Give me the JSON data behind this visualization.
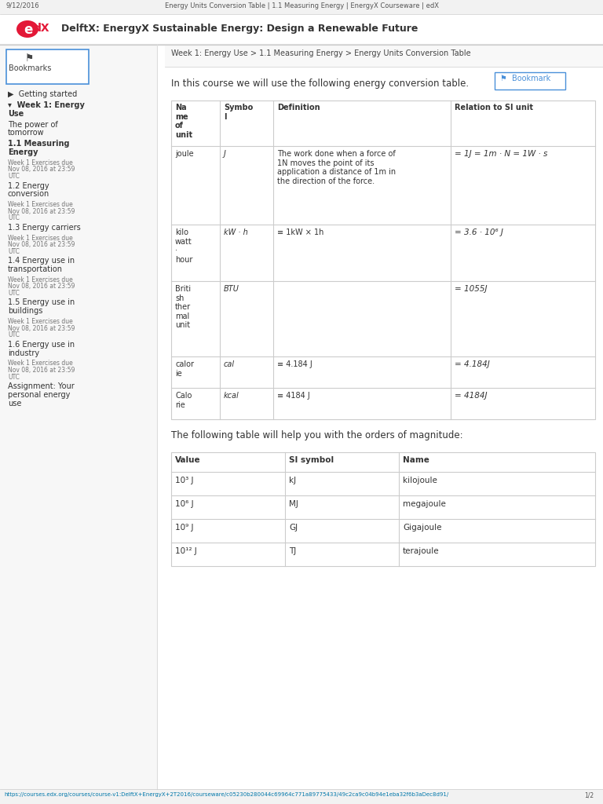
{
  "bg_color": "#ffffff",
  "header_text": "9/12/2016",
  "header_center": "Energy Units Conversion Table | 1.1 Measuring Energy | EnergyX Courseware | edX",
  "brand_title": "DelftX: EnergyX Sustainable Energy: Design a Renewable Future",
  "breadcrumb": "Week 1: Energy Use > 1.1 Measuring Energy > Energy Units Conversion Table",
  "intro_text": "In this course we will use the following energy conversion table.",
  "table_border_color": "#cccccc",
  "header_bg": "#f0f0f0",
  "left_panel_bg": "#f7f7f7",
  "edx_red": "#e31837",
  "edx_blue": "#02a0e0",
  "footer_url": "https://courses.edx.org/courses/course-v1:DelftX+EnergyX+2T2016/courseware/c05230b280044c69964c771a89775433/49c2ca9c04b94e1eba32f6b3aDec8d91/",
  "footer_page": "1/2",
  "sidebar_items": [
    {
      "text": "▶  Getting started",
      "bold": false,
      "indent": 0,
      "small": false
    },
    {
      "text": "▾  Week 1: Energy\n    Use",
      "bold": true,
      "indent": 0,
      "small": false
    },
    {
      "text": "The power of\ntomorrow",
      "bold": false,
      "indent": 0,
      "small": false
    },
    {
      "text": "1.1 Measuring\nEnergy",
      "bold": true,
      "indent": 0,
      "small": false
    },
    {
      "text": "Week 1 Exercises due\nNov 08, 2016 at 23:59\nUTC",
      "bold": false,
      "indent": 0,
      "small": true
    },
    {
      "text": "1.2 Energy\nconversion",
      "bold": false,
      "indent": 0,
      "small": false
    },
    {
      "text": "Week 1 Exercises due\nNov 08, 2016 at 23:59\nUTC",
      "bold": false,
      "indent": 0,
      "small": true
    },
    {
      "text": "1.3 Energy carriers",
      "bold": false,
      "indent": 0,
      "small": false
    },
    {
      "text": "Week 1 Exercises due\nNov 08, 2016 at 23:59\nUTC",
      "bold": false,
      "indent": 0,
      "small": true
    },
    {
      "text": "1.4 Energy use in\ntransportation",
      "bold": false,
      "indent": 0,
      "small": false
    },
    {
      "text": "Week 1 Exercises due\nNov 08, 2016 at 23:59\nUTC",
      "bold": false,
      "indent": 0,
      "small": true
    },
    {
      "text": "1.5 Energy use in\nbuildings",
      "bold": false,
      "indent": 0,
      "small": false
    },
    {
      "text": "Week 1 Exercises due\nNov 08, 2016 at 23:59\nUTC",
      "bold": false,
      "indent": 0,
      "small": true
    },
    {
      "text": "1.6 Energy use in\nindustry",
      "bold": false,
      "indent": 0,
      "small": false
    },
    {
      "text": "Week 1 Exercises due\nNov 08, 2016 at 23:59\nUTC",
      "bold": false,
      "indent": 0,
      "small": true
    },
    {
      "text": "Assignment: Your\npersonal energy\nuse",
      "bold": false,
      "indent": 0,
      "small": false
    }
  ]
}
